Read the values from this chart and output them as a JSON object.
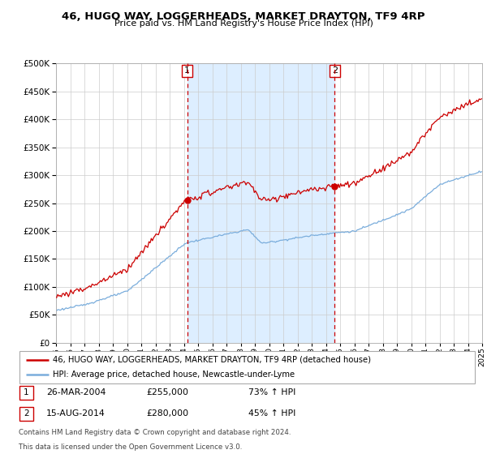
{
  "title": "46, HUGO WAY, LOGGERHEADS, MARKET DRAYTON, TF9 4RP",
  "subtitle": "Price paid vs. HM Land Registry's House Price Index (HPI)",
  "legend_line1": "46, HUGO WAY, LOGGERHEADS, MARKET DRAYTON, TF9 4RP (detached house)",
  "legend_line2": "HPI: Average price, detached house, Newcastle-under-Lyme",
  "event1_date": "26-MAR-2004",
  "event1_price": 255000,
  "event1_hpi": "73% ↑ HPI",
  "event2_date": "15-AUG-2014",
  "event2_price": 280000,
  "event2_hpi": "45% ↑ HPI",
  "footer1": "Contains HM Land Registry data © Crown copyright and database right 2024.",
  "footer2": "This data is licensed under the Open Government Licence v3.0.",
  "red_color": "#cc0000",
  "blue_color": "#7aaddc",
  "bg_color": "#ffffff",
  "shaded_color": "#ddeeff",
  "grid_color": "#cccccc",
  "ylim": [
    0,
    500000
  ],
  "yticks": [
    0,
    50000,
    100000,
    150000,
    200000,
    250000,
    300000,
    350000,
    400000,
    450000,
    500000
  ],
  "sale1_year": 2004.23,
  "sale2_year": 2014.62
}
